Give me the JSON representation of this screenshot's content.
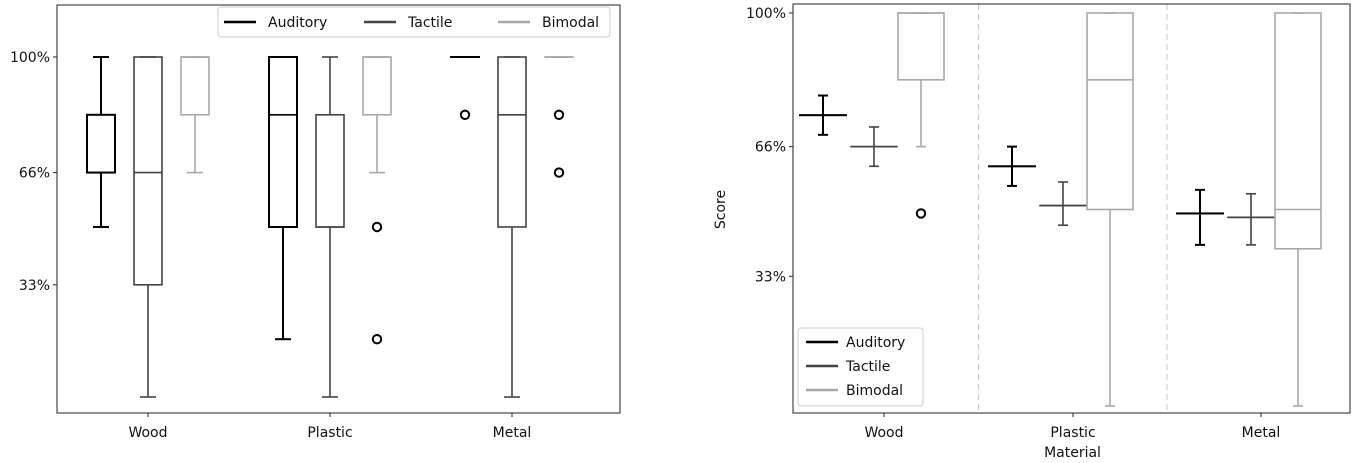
{
  "chart_data": [
    {
      "type": "box",
      "title": "",
      "xlabel": "",
      "ylabel": "",
      "categories": [
        "Wood",
        "Plastic",
        "Metal"
      ],
      "ylim": [
        0,
        105
      ],
      "yticks": [
        {
          "value": 33,
          "label": "33%"
        },
        {
          "value": 66,
          "label": "66%"
        },
        {
          "value": 100,
          "label": "100%"
        }
      ],
      "legend": {
        "placement": "top-right",
        "layout": "horizontal"
      },
      "series": [
        {
          "name": "Auditory",
          "color": "#000000",
          "boxes": [
            {
              "category": "Wood",
              "whislo": 50,
              "q1": 66,
              "med": 66,
              "q3": 83,
              "whishi": 100,
              "fliers": []
            },
            {
              "category": "Plastic",
              "whislo": 17,
              "q1": 50,
              "med": 83,
              "q3": 100,
              "whishi": 100,
              "fliers": []
            },
            {
              "category": "Metal",
              "whislo": 100,
              "q1": 100,
              "med": 100,
              "q3": 100,
              "whishi": 100,
              "fliers": [
                83
              ]
            }
          ]
        },
        {
          "name": "Tactile",
          "color": "#444444",
          "boxes": [
            {
              "category": "Wood",
              "whislo": 0,
              "q1": 33,
              "med": 66,
              "q3": 100,
              "whishi": 100,
              "fliers": []
            },
            {
              "category": "Plastic",
              "whislo": 0,
              "q1": 50,
              "med": 50,
              "q3": 83,
              "whishi": 100,
              "fliers": []
            },
            {
              "category": "Metal",
              "whislo": 0,
              "q1": 50,
              "med": 83,
              "q3": 100,
              "whishi": 100,
              "fliers": []
            }
          ]
        },
        {
          "name": "Bimodal",
          "color": "#a8a8a8",
          "boxes": [
            {
              "category": "Wood",
              "whislo": 66,
              "q1": 83,
              "med": 100,
              "q3": 100,
              "whishi": 100,
              "fliers": []
            },
            {
              "category": "Plastic",
              "whislo": 66,
              "q1": 83,
              "med": 100,
              "q3": 100,
              "whishi": 100,
              "fliers": [
                50,
                17
              ]
            },
            {
              "category": "Metal",
              "whislo": 100,
              "q1": 100,
              "med": 100,
              "q3": 100,
              "whishi": 100,
              "fliers": [
                83,
                66
              ]
            }
          ]
        }
      ]
    },
    {
      "type": "box",
      "title": "",
      "xlabel": "Material",
      "ylabel": "Score",
      "categories": [
        "Wood",
        "Plastic",
        "Metal"
      ],
      "ylim": [
        0,
        100
      ],
      "yticks": [
        {
          "value": 33,
          "label": "33%"
        },
        {
          "value": 66,
          "label": "66%"
        },
        {
          "value": 100,
          "label": "100%"
        }
      ],
      "separators": true,
      "legend": {
        "placement": "bottom-left",
        "layout": "vertical"
      },
      "series": [
        {
          "name": "Auditory",
          "color": "#000000",
          "boxes": [
            {
              "category": "Wood",
              "whislo": 69,
              "q1": 74,
              "med": 74,
              "q3": 74,
              "whishi": 79,
              "fliers": []
            },
            {
              "category": "Plastic",
              "whislo": 56,
              "q1": 61,
              "med": 61,
              "q3": 61,
              "whishi": 66,
              "fliers": []
            },
            {
              "category": "Metal",
              "whislo": 41,
              "q1": 49,
              "med": 49,
              "q3": 49,
              "whishi": 55,
              "fliers": []
            }
          ]
        },
        {
          "name": "Tactile",
          "color": "#444444",
          "boxes": [
            {
              "category": "Wood",
              "whislo": 61,
              "q1": 66,
              "med": 66,
              "q3": 66,
              "whishi": 71,
              "fliers": []
            },
            {
              "category": "Plastic",
              "whislo": 46,
              "q1": 51,
              "med": 51,
              "q3": 51,
              "whishi": 57,
              "fliers": []
            },
            {
              "category": "Metal",
              "whislo": 41,
              "q1": 48,
              "med": 48,
              "q3": 48,
              "whishi": 54,
              "fliers": []
            }
          ]
        },
        {
          "name": "Bimodal",
          "color": "#a8a8a8",
          "boxes": [
            {
              "category": "Wood",
              "whislo": 66,
              "q1": 83,
              "med": 100,
              "q3": 100,
              "whishi": 100,
              "fliers": [
                49
              ]
            },
            {
              "category": "Plastic",
              "whislo": 0,
              "q1": 50,
              "med": 83,
              "q3": 100,
              "whishi": 100,
              "fliers": []
            },
            {
              "category": "Metal",
              "whislo": 0,
              "q1": 40,
              "med": 50,
              "q3": 100,
              "whishi": 100,
              "fliers": []
            }
          ]
        }
      ]
    }
  ]
}
